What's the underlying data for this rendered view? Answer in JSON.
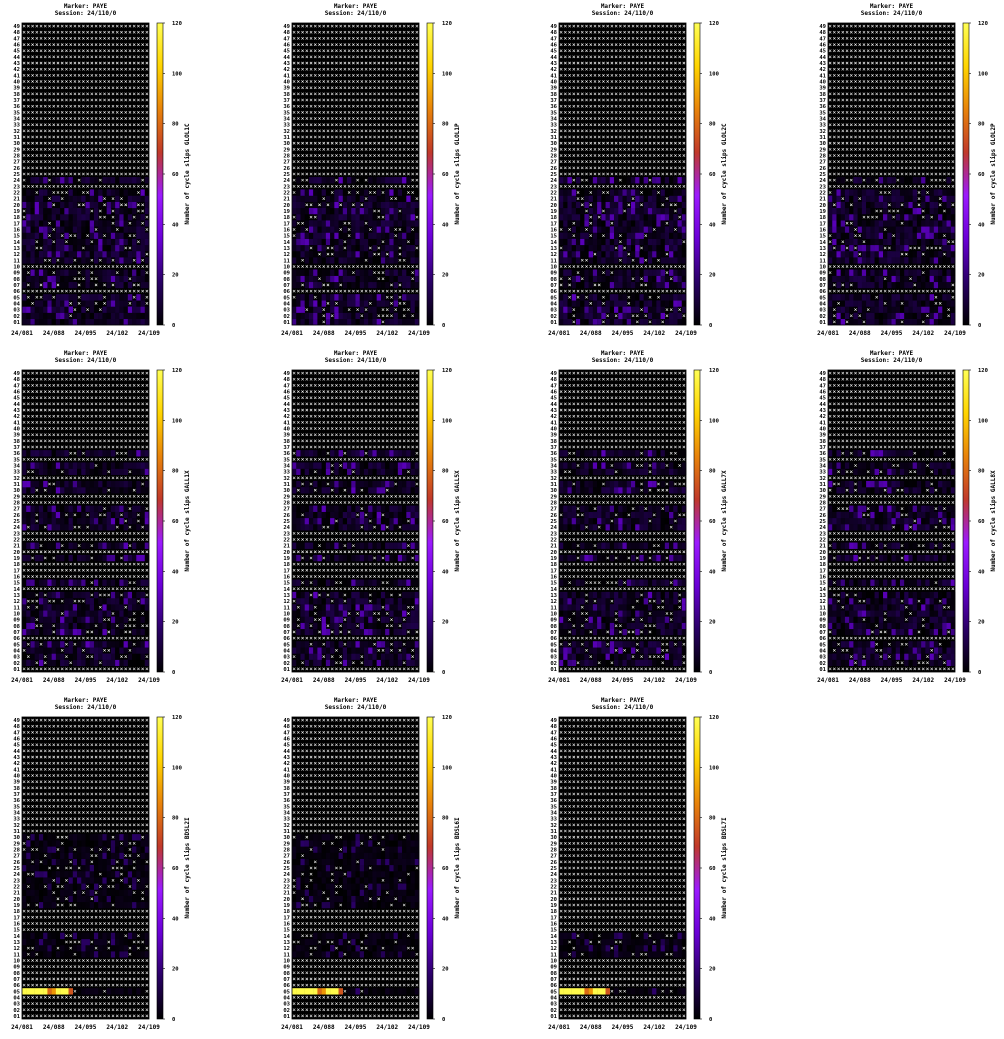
{
  "colors": {
    "background": "#000000",
    "cross": "#ffffff",
    "gradient": [
      "#000000",
      "#2a0066",
      "#6a00d6",
      "#9b1bff",
      "#c0392b",
      "#e8830a",
      "#ffd400",
      "#ffff55"
    ]
  },
  "chart_data": [
    {
      "type": "heatmap",
      "title": "Marker: PAYE",
      "subtitle": "Session: 24/110/0",
      "ylabel": "Number of cycle slips GLOL1C",
      "x_ticks": [
        "24/081",
        "24/088",
        "24/095",
        "24/102",
        "24/109"
      ],
      "y_ticks": [
        "01",
        "02",
        "03",
        "04",
        "05",
        "06",
        "07",
        "08",
        "09",
        "10",
        "11",
        "12",
        "13",
        "14",
        "15",
        "16",
        "17",
        "18",
        "19",
        "20",
        "21",
        "22",
        "23",
        "24",
        "25",
        "26",
        "27",
        "28",
        "29",
        "30",
        "31",
        "32",
        "33",
        "34",
        "35",
        "36",
        "37",
        "38",
        "39",
        "40",
        "41",
        "42",
        "43",
        "44",
        "45",
        "46",
        "47",
        "48",
        "49"
      ],
      "colorbar_ticks": [
        "0",
        "20",
        "40",
        "60",
        "80",
        "100",
        "120"
      ],
      "zlim": [
        0,
        120
      ],
      "active_rows": [
        1,
        2,
        3,
        4,
        5,
        7,
        8,
        9,
        11,
        12,
        13,
        14,
        15,
        16,
        17,
        18,
        19,
        20,
        21,
        22,
        24
      ],
      "typical_value": 12,
      "peak_value": 30,
      "high_cells": []
    },
    {
      "type": "heatmap",
      "title": "Marker: PAYE",
      "subtitle": "Session: 24/110/0",
      "ylabel": "Number of cycle slips GLOL1P",
      "x_ticks": [
        "24/081",
        "24/088",
        "24/095",
        "24/102",
        "24/109"
      ],
      "y_ticks": [
        "01",
        "02",
        "03",
        "04",
        "05",
        "06",
        "07",
        "08",
        "09",
        "10",
        "11",
        "12",
        "13",
        "14",
        "15",
        "16",
        "17",
        "18",
        "19",
        "20",
        "21",
        "22",
        "23",
        "24",
        "25",
        "26",
        "27",
        "28",
        "29",
        "30",
        "31",
        "32",
        "33",
        "34",
        "35",
        "36",
        "37",
        "38",
        "39",
        "40",
        "41",
        "42",
        "43",
        "44",
        "45",
        "46",
        "47",
        "48",
        "49"
      ],
      "colorbar_ticks": [
        "0",
        "20",
        "40",
        "60",
        "80",
        "100",
        "120"
      ],
      "zlim": [
        0,
        120
      ],
      "active_rows": [
        1,
        2,
        3,
        4,
        5,
        7,
        8,
        9,
        11,
        12,
        13,
        14,
        15,
        16,
        17,
        18,
        19,
        20,
        21,
        22,
        24
      ],
      "typical_value": 12,
      "peak_value": 30,
      "high_cells": []
    },
    {
      "type": "heatmap",
      "title": "Marker: PAYE",
      "subtitle": "Session: 24/110/0",
      "ylabel": "Number of cycle slips GLOL2C",
      "x_ticks": [
        "24/081",
        "24/088",
        "24/095",
        "24/102",
        "24/109"
      ],
      "y_ticks": [
        "01",
        "02",
        "03",
        "04",
        "05",
        "06",
        "07",
        "08",
        "09",
        "10",
        "11",
        "12",
        "13",
        "14",
        "15",
        "16",
        "17",
        "18",
        "19",
        "20",
        "21",
        "22",
        "23",
        "24",
        "25",
        "26",
        "27",
        "28",
        "29",
        "30",
        "31",
        "32",
        "33",
        "34",
        "35",
        "36",
        "37",
        "38",
        "39",
        "40",
        "41",
        "42",
        "43",
        "44",
        "45",
        "46",
        "47",
        "48",
        "49"
      ],
      "colorbar_ticks": [
        "0",
        "20",
        "40",
        "60",
        "80",
        "100",
        "120"
      ],
      "zlim": [
        0,
        120
      ],
      "active_rows": [
        1,
        2,
        3,
        4,
        5,
        7,
        8,
        9,
        11,
        12,
        13,
        14,
        15,
        16,
        17,
        18,
        19,
        20,
        21,
        22,
        24
      ],
      "typical_value": 12,
      "peak_value": 30,
      "high_cells": []
    },
    {
      "type": "heatmap",
      "title": "Marker: PAYE",
      "subtitle": "Session: 24/110/0",
      "ylabel": "Number of cycle slips GLOL2P",
      "x_ticks": [
        "24/081",
        "24/088",
        "24/095",
        "24/102",
        "24/109"
      ],
      "y_ticks": [
        "01",
        "02",
        "03",
        "04",
        "05",
        "06",
        "07",
        "08",
        "09",
        "10",
        "11",
        "12",
        "13",
        "14",
        "15",
        "16",
        "17",
        "18",
        "19",
        "20",
        "21",
        "22",
        "23",
        "24",
        "25",
        "26",
        "27",
        "28",
        "29",
        "30",
        "31",
        "32",
        "33",
        "34",
        "35",
        "36",
        "37",
        "38",
        "39",
        "40",
        "41",
        "42",
        "43",
        "44",
        "45",
        "46",
        "47",
        "48",
        "49"
      ],
      "colorbar_ticks": [
        "0",
        "20",
        "40",
        "60",
        "80",
        "100",
        "120"
      ],
      "zlim": [
        0,
        120
      ],
      "active_rows": [
        1,
        2,
        3,
        4,
        5,
        7,
        8,
        9,
        11,
        12,
        13,
        14,
        15,
        16,
        17,
        18,
        19,
        20,
        21,
        22,
        24
      ],
      "typical_value": 12,
      "peak_value": 30,
      "high_cells": []
    },
    {
      "type": "heatmap",
      "title": "Marker: PAYE",
      "subtitle": "Session: 24/110/0",
      "ylabel": "Number of cycle slips GALL1X",
      "x_ticks": [
        "24/081",
        "24/088",
        "24/095",
        "24/102",
        "24/109"
      ],
      "y_ticks": [
        "01",
        "02",
        "03",
        "04",
        "05",
        "06",
        "07",
        "08",
        "09",
        "10",
        "11",
        "12",
        "13",
        "14",
        "15",
        "16",
        "17",
        "18",
        "19",
        "20",
        "21",
        "22",
        "23",
        "24",
        "25",
        "26",
        "27",
        "28",
        "29",
        "30",
        "31",
        "32",
        "33",
        "34",
        "35",
        "36",
        "37",
        "38",
        "39",
        "40",
        "41",
        "42",
        "43",
        "44",
        "45",
        "46",
        "47",
        "48",
        "49"
      ],
      "colorbar_ticks": [
        "0",
        "20",
        "40",
        "60",
        "80",
        "100",
        "120"
      ],
      "zlim": [
        0,
        120
      ],
      "active_rows": [
        2,
        3,
        4,
        5,
        7,
        8,
        9,
        10,
        11,
        12,
        13,
        15,
        19,
        21,
        24,
        25,
        26,
        27,
        30,
        31,
        33,
        34,
        36
      ],
      "typical_value": 12,
      "peak_value": 30,
      "high_cells": []
    },
    {
      "type": "heatmap",
      "title": "Marker: PAYE",
      "subtitle": "Session: 24/110/0",
      "ylabel": "Number of cycle slips GALL5X",
      "x_ticks": [
        "24/081",
        "24/088",
        "24/095",
        "24/102",
        "24/109"
      ],
      "y_ticks": [
        "01",
        "02",
        "03",
        "04",
        "05",
        "06",
        "07",
        "08",
        "09",
        "10",
        "11",
        "12",
        "13",
        "14",
        "15",
        "16",
        "17",
        "18",
        "19",
        "20",
        "21",
        "22",
        "23",
        "24",
        "25",
        "26",
        "27",
        "28",
        "29",
        "30",
        "31",
        "32",
        "33",
        "34",
        "35",
        "36",
        "37",
        "38",
        "39",
        "40",
        "41",
        "42",
        "43",
        "44",
        "45",
        "46",
        "47",
        "48",
        "49"
      ],
      "colorbar_ticks": [
        "0",
        "20",
        "40",
        "60",
        "80",
        "100",
        "120"
      ],
      "zlim": [
        0,
        120
      ],
      "active_rows": [
        2,
        3,
        4,
        5,
        7,
        8,
        9,
        10,
        11,
        12,
        13,
        15,
        19,
        21,
        24,
        25,
        26,
        27,
        30,
        31,
        33,
        34,
        36
      ],
      "typical_value": 12,
      "peak_value": 30,
      "high_cells": []
    },
    {
      "type": "heatmap",
      "title": "Marker: PAYE",
      "subtitle": "Session: 24/110/0",
      "ylabel": "Number of cycle slips GALL7X",
      "x_ticks": [
        "24/081",
        "24/088",
        "24/095",
        "24/102",
        "24/109"
      ],
      "y_ticks": [
        "01",
        "02",
        "03",
        "04",
        "05",
        "06",
        "07",
        "08",
        "09",
        "10",
        "11",
        "12",
        "13",
        "14",
        "15",
        "16",
        "17",
        "18",
        "19",
        "20",
        "21",
        "22",
        "23",
        "24",
        "25",
        "26",
        "27",
        "28",
        "29",
        "30",
        "31",
        "32",
        "33",
        "34",
        "35",
        "36",
        "37",
        "38",
        "39",
        "40",
        "41",
        "42",
        "43",
        "44",
        "45",
        "46",
        "47",
        "48",
        "49"
      ],
      "colorbar_ticks": [
        "0",
        "20",
        "40",
        "60",
        "80",
        "100",
        "120"
      ],
      "zlim": [
        0,
        120
      ],
      "active_rows": [
        2,
        3,
        4,
        5,
        7,
        8,
        9,
        10,
        11,
        12,
        13,
        15,
        19,
        21,
        24,
        25,
        26,
        27,
        30,
        31,
        33,
        34,
        36
      ],
      "typical_value": 12,
      "peak_value": 30,
      "high_cells": []
    },
    {
      "type": "heatmap",
      "title": "Marker: PAYE",
      "subtitle": "Session: 24/110/0",
      "ylabel": "Number of cycle slips GALL8X",
      "x_ticks": [
        "24/081",
        "24/088",
        "24/095",
        "24/102",
        "24/109"
      ],
      "y_ticks": [
        "01",
        "02",
        "03",
        "04",
        "05",
        "06",
        "07",
        "08",
        "09",
        "10",
        "11",
        "12",
        "13",
        "14",
        "15",
        "16",
        "17",
        "18",
        "19",
        "20",
        "21",
        "22",
        "23",
        "24",
        "25",
        "26",
        "27",
        "28",
        "29",
        "30",
        "31",
        "32",
        "33",
        "34",
        "35",
        "36",
        "37",
        "38",
        "39",
        "40",
        "41",
        "42",
        "43",
        "44",
        "45",
        "46",
        "47",
        "48",
        "49"
      ],
      "colorbar_ticks": [
        "0",
        "20",
        "40",
        "60",
        "80",
        "100",
        "120"
      ],
      "zlim": [
        0,
        120
      ],
      "active_rows": [
        2,
        3,
        4,
        5,
        7,
        8,
        9,
        10,
        11,
        12,
        13,
        15,
        19,
        21,
        24,
        25,
        26,
        27,
        30,
        31,
        33,
        34,
        36
      ],
      "typical_value": 12,
      "peak_value": 30,
      "high_cells": []
    },
    {
      "type": "heatmap",
      "title": "Marker: PAYE",
      "subtitle": "Session: 24/110/0",
      "ylabel": "Number of cycle slips BDSL2I",
      "x_ticks": [
        "24/081",
        "24/088",
        "24/095",
        "24/102",
        "24/109"
      ],
      "y_ticks": [
        "01",
        "02",
        "03",
        "04",
        "05",
        "06",
        "07",
        "08",
        "09",
        "10",
        "11",
        "12",
        "13",
        "14",
        "15",
        "16",
        "17",
        "18",
        "19",
        "20",
        "21",
        "22",
        "23",
        "24",
        "25",
        "26",
        "27",
        "28",
        "29",
        "30",
        "31",
        "32",
        "33",
        "34",
        "35",
        "36",
        "37",
        "38",
        "39",
        "40",
        "41",
        "42",
        "43",
        "44",
        "45",
        "46",
        "47",
        "48",
        "49"
      ],
      "colorbar_ticks": [
        "0",
        "20",
        "40",
        "60",
        "80",
        "100",
        "120"
      ],
      "zlim": [
        0,
        120
      ],
      "active_rows": [
        5,
        11,
        12,
        13,
        14,
        19,
        20,
        21,
        22,
        23,
        24,
        25,
        26,
        27,
        28,
        29,
        30
      ],
      "typical_value": 5,
      "peak_value": 18,
      "high_cells": [
        {
          "row": 5,
          "from": 0,
          "to": 6,
          "value": 118
        },
        {
          "row": 5,
          "from": 6,
          "to": 6,
          "value": 80
        },
        {
          "row": 5,
          "from": 7,
          "to": 7,
          "value": 90
        },
        {
          "row": 5,
          "from": 8,
          "to": 11,
          "value": 118
        },
        {
          "row": 5,
          "from": 11,
          "to": 11,
          "value": 75
        }
      ]
    },
    {
      "type": "heatmap",
      "title": "Marker: PAYE",
      "subtitle": "Session: 24/110/0",
      "ylabel": "Number of cycle slips BDSL6I",
      "x_ticks": [
        "24/081",
        "24/088",
        "24/095",
        "24/102",
        "24/109"
      ],
      "y_ticks": [
        "01",
        "02",
        "03",
        "04",
        "05",
        "06",
        "07",
        "08",
        "09",
        "10",
        "11",
        "12",
        "13",
        "14",
        "15",
        "16",
        "17",
        "18",
        "19",
        "20",
        "21",
        "22",
        "23",
        "24",
        "25",
        "26",
        "27",
        "28",
        "29",
        "30",
        "31",
        "32",
        "33",
        "34",
        "35",
        "36",
        "37",
        "38",
        "39",
        "40",
        "41",
        "42",
        "43",
        "44",
        "45",
        "46",
        "47",
        "48",
        "49"
      ],
      "colorbar_ticks": [
        "0",
        "20",
        "40",
        "60",
        "80",
        "100",
        "120"
      ],
      "zlim": [
        0,
        120
      ],
      "active_rows": [
        5,
        11,
        12,
        13,
        14,
        19,
        20,
        21,
        22,
        23,
        24,
        25,
        26,
        27,
        28,
        29,
        30
      ],
      "typical_value": 5,
      "peak_value": 18,
      "high_cells": [
        {
          "row": 5,
          "from": 0,
          "to": 6,
          "value": 118
        },
        {
          "row": 5,
          "from": 6,
          "to": 6,
          "value": 80
        },
        {
          "row": 5,
          "from": 7,
          "to": 7,
          "value": 90
        },
        {
          "row": 5,
          "from": 8,
          "to": 11,
          "value": 118
        },
        {
          "row": 5,
          "from": 11,
          "to": 11,
          "value": 75
        }
      ]
    },
    {
      "type": "heatmap",
      "title": "Marker: PAYE",
      "subtitle": "Session: 24/110/0",
      "ylabel": "Number of cycle slips BDSL7I",
      "x_ticks": [
        "24/081",
        "24/088",
        "24/095",
        "24/102",
        "24/109"
      ],
      "y_ticks": [
        "01",
        "02",
        "03",
        "04",
        "05",
        "06",
        "07",
        "08",
        "09",
        "10",
        "11",
        "12",
        "13",
        "14",
        "15",
        "16",
        "17",
        "18",
        "19",
        "20",
        "21",
        "22",
        "23",
        "24",
        "25",
        "26",
        "27",
        "28",
        "29",
        "30",
        "31",
        "32",
        "33",
        "34",
        "35",
        "36",
        "37",
        "38",
        "39",
        "40",
        "41",
        "42",
        "43",
        "44",
        "45",
        "46",
        "47",
        "48",
        "49"
      ],
      "colorbar_ticks": [
        "0",
        "20",
        "40",
        "60",
        "80",
        "100",
        "120"
      ],
      "zlim": [
        0,
        120
      ],
      "active_rows": [
        5,
        11,
        12,
        13,
        14
      ],
      "typical_value": 5,
      "peak_value": 18,
      "high_cells": [
        {
          "row": 5,
          "from": 0,
          "to": 6,
          "value": 118
        },
        {
          "row": 5,
          "from": 6,
          "to": 6,
          "value": 80
        },
        {
          "row": 5,
          "from": 7,
          "to": 7,
          "value": 90
        },
        {
          "row": 5,
          "from": 8,
          "to": 11,
          "value": 118
        },
        {
          "row": 5,
          "from": 11,
          "to": 11,
          "value": 75
        }
      ]
    }
  ]
}
